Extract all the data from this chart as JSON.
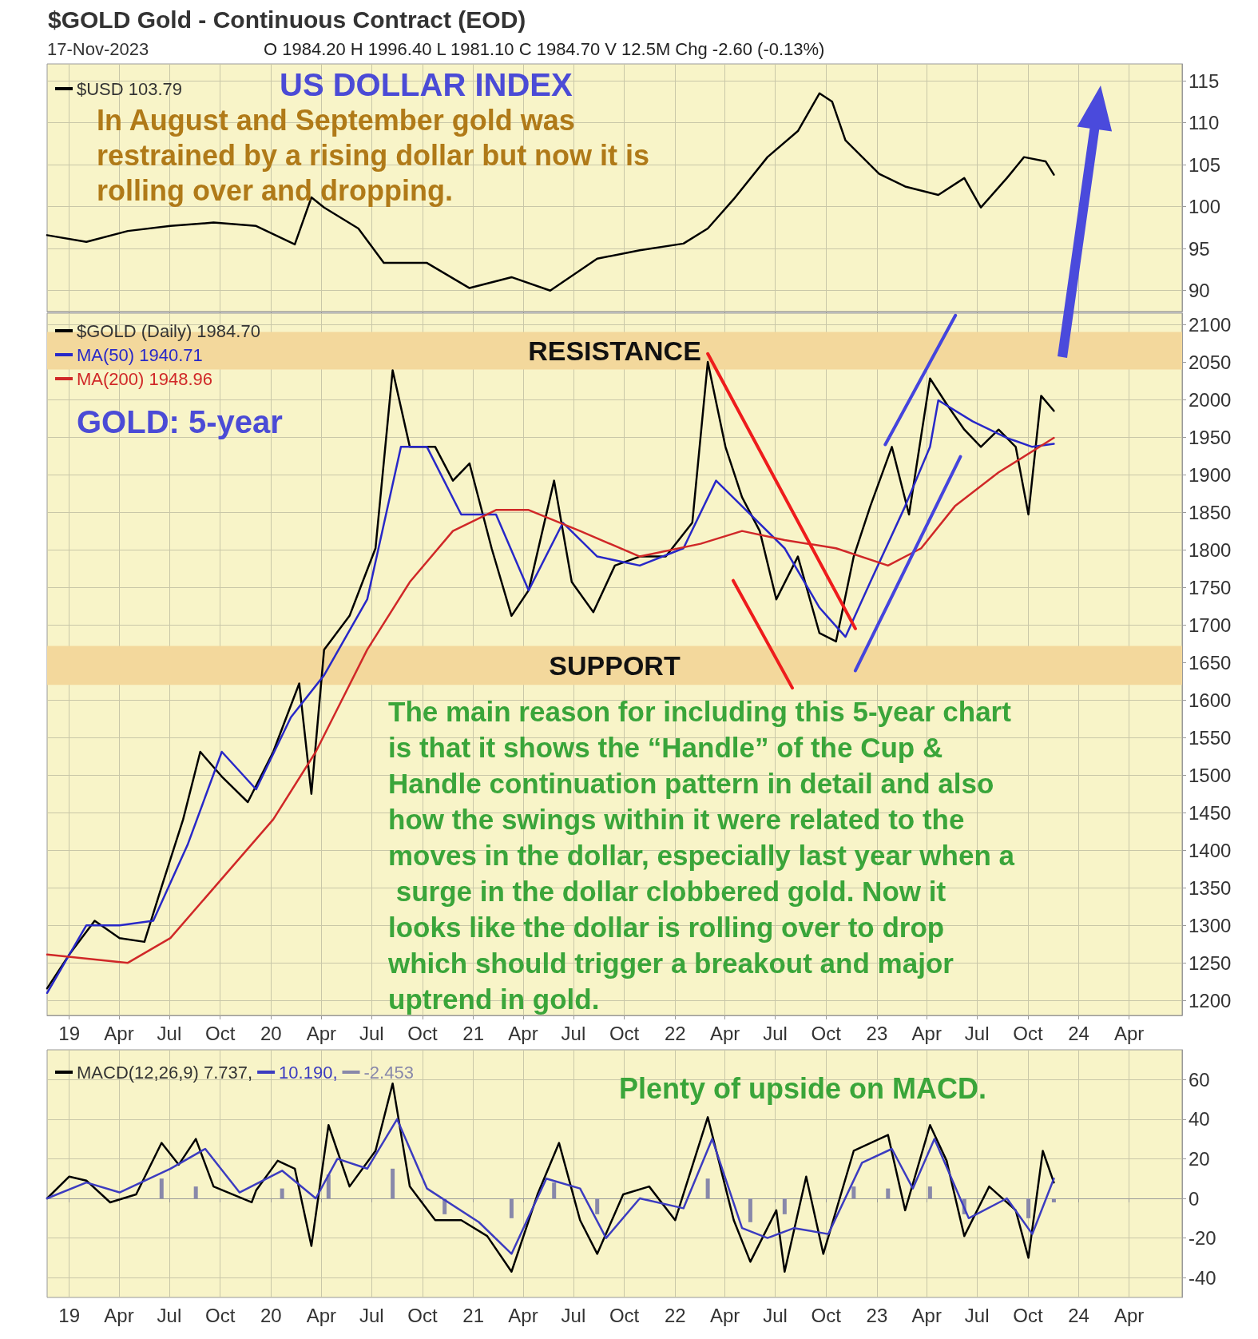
{
  "chart_data": [
    {
      "type": "line",
      "title": "$GOLD Gold - Continuous Contract (EOD)",
      "annotations": [
        "17-Nov-2023",
        "O 1984.20 H 1996.40 L 1981.10 C 1984.70 V 12.5M Chg -2.60 (-0.13%)",
        "US DOLLAR INDEX",
        "In August and September gold was restrained by a rising dollar but now it is rolling over and dropping."
      ],
      "series": [
        {
          "name": "$USD 103.79",
          "color": "#000000",
          "x": [
            "2018-11-22",
            "2019-02-01",
            "2019-04-17",
            "2019-07-03",
            "2019-09-19",
            "2019-12-05",
            "2020-02-13",
            "2020-03-14",
            "2020-04-06",
            "2020-06-07",
            "2020-07-23",
            "2020-10-09",
            "2020-12-25",
            "2021-03-11",
            "2021-05-20",
            "2021-08-13",
            "2021-10-29",
            "2022-01-16",
            "2022-03-01",
            "2022-04-17",
            "2022-06-17",
            "2022-08-11",
            "2022-09-19",
            "2022-10-12",
            "2022-11-05",
            "2023-01-05",
            "2023-02-21",
            "2023-04-22",
            "2023-06-08",
            "2023-07-08",
            "2023-08-24",
            "2023-09-24",
            "2023-11-02",
            "2023-11-17"
          ],
          "values": [
            96.6,
            95.8,
            97.1,
            97.7,
            98.1,
            97.7,
            95.5,
            101.1,
            99.9,
            97.4,
            93.3,
            93.3,
            90.3,
            91.6,
            90.0,
            93.8,
            94.8,
            95.6,
            97.4,
            100.9,
            105.9,
            109.0,
            113.5,
            112.5,
            107.9,
            103.9,
            102.4,
            101.4,
            103.4,
            99.9,
            103.4,
            105.9,
            105.4,
            103.8
          ]
        }
      ],
      "xlim": [
        "2018-11-22",
        "2024-07-06"
      ],
      "xticks": [
        {
          "value": "2019-01-01",
          "label": null
        },
        {
          "value": "2019-04-01",
          "label": null
        },
        {
          "value": "2019-07-01",
          "label": null
        },
        {
          "value": "2019-10-01",
          "label": null
        },
        {
          "value": "2020-01-01",
          "label": null
        },
        {
          "value": "2020-04-01",
          "label": null
        },
        {
          "value": "2020-07-01",
          "label": null
        },
        {
          "value": "2020-10-01",
          "label": null
        },
        {
          "value": "2021-01-01",
          "label": null
        },
        {
          "value": "2021-04-01",
          "label": null
        },
        {
          "value": "2021-07-01",
          "label": null
        },
        {
          "value": "2021-10-01",
          "label": null
        },
        {
          "value": "2022-01-01",
          "label": null
        },
        {
          "value": "2022-04-01",
          "label": null
        },
        {
          "value": "2022-07-01",
          "label": null
        },
        {
          "value": "2022-10-01",
          "label": null
        },
        {
          "value": "2023-01-01",
          "label": null
        },
        {
          "value": "2023-04-01",
          "label": null
        },
        {
          "value": "2023-07-01",
          "label": null
        },
        {
          "value": "2023-10-01",
          "label": null
        },
        {
          "value": "2024-01-01",
          "label": null
        },
        {
          "value": "2024-04-01",
          "label": null
        }
      ],
      "ylim": [
        87.5,
        117
      ],
      "yticks": [
        90,
        95,
        100,
        105,
        110,
        115
      ],
      "tick_labels": "y",
      "grid": true,
      "legend": "top left",
      "marker": "none",
      "line_style": "solid"
    },
    {
      "type": "line",
      "annotations": [
        "GOLD: 5-year",
        "The main reason for including this 5-year chart is that it shows the “Handle” of the Cup & Handle continuation pattern in detail and also how the swings within it were related to the moves in the dollar, especially last year when a surge in the dollar clobbered gold. Now it looks like the dollar is rolling over to drop which should trigger a breakout and major uptrend in gold."
      ],
      "series": [
        {
          "name": "$GOLD (Daily) 1984.70",
          "color": "#000000",
          "x": [
            "2018-11-22",
            "2019-01-01",
            "2019-02-16",
            "2019-04-02",
            "2019-05-17",
            "2019-06-17",
            "2019-07-26",
            "2019-08-26",
            "2019-10-04",
            "2019-11-20",
            "2020-01-05",
            "2020-02-21",
            "2020-03-14",
            "2020-04-06",
            "2020-05-22",
            "2020-07-08",
            "2020-08-08",
            "2020-09-08",
            "2020-10-24",
            "2020-11-25",
            "2020-12-25",
            "2021-02-03",
            "2021-03-11",
            "2021-04-11",
            "2021-05-27",
            "2021-06-28",
            "2021-08-06",
            "2021-09-14",
            "2021-10-29",
            "2021-12-15",
            "2022-02-01",
            "2022-03-01",
            "2022-04-02",
            "2022-05-02",
            "2022-06-03",
            "2022-07-03",
            "2022-08-11",
            "2022-09-19",
            "2022-10-19",
            "2022-11-20",
            "2022-12-20",
            "2023-01-28",
            "2023-02-28",
            "2023-04-07",
            "2023-05-07",
            "2023-06-08",
            "2023-07-08",
            "2023-08-09",
            "2023-09-09",
            "2023-10-02",
            "2023-10-25",
            "2023-11-17"
          ],
          "values": [
            1216,
            1261,
            1306,
            1283,
            1278,
            1351,
            1441,
            1531,
            1498,
            1464,
            1531,
            1622,
            1475,
            1667,
            1712,
            1802,
            2039,
            1937,
            1937,
            1892,
            1915,
            1802,
            1712,
            1746,
            1892,
            1757,
            1717,
            1779,
            1791,
            1791,
            1836,
            2050,
            1937,
            1870,
            1825,
            1734,
            1791,
            1689,
            1678,
            1791,
            1858,
            1937,
            1847,
            2028,
            1994,
            1960,
            1937,
            1960,
            1937,
            1847,
            2005,
            1985
          ]
        },
        {
          "name": "MA(50) 1940.71",
          "color": "#2828c8",
          "x": [
            "2018-11-22",
            "2019-02-01",
            "2019-04-02",
            "2019-06-02",
            "2019-08-03",
            "2019-10-04",
            "2019-12-05",
            "2020-02-06",
            "2020-04-06",
            "2020-06-23",
            "2020-08-23",
            "2020-10-09",
            "2020-12-10",
            "2021-02-11",
            "2021-04-11",
            "2021-06-12",
            "2021-08-13",
            "2021-10-29",
            "2022-01-16",
            "2022-03-16",
            "2022-05-17",
            "2022-07-18",
            "2022-09-19",
            "2022-11-05",
            "2022-12-20",
            "2023-02-21",
            "2023-04-07",
            "2023-04-22",
            "2023-06-23",
            "2023-08-24",
            "2023-10-09",
            "2023-11-17"
          ],
          "values": [
            1210,
            1300,
            1300,
            1306,
            1407,
            1531,
            1481,
            1577,
            1633,
            1734,
            1937,
            1937,
            1847,
            1847,
            1746,
            1836,
            1791,
            1779,
            1802,
            1892,
            1847,
            1802,
            1723,
            1684,
            1757,
            1858,
            1937,
            1999,
            1971,
            1949,
            1937,
            1941
          ]
        },
        {
          "name": "MA(200) 1948.96",
          "color": "#d02828",
          "x": [
            "2018-11-22",
            "2019-04-17",
            "2019-07-03",
            "2019-10-04",
            "2020-01-05",
            "2020-03-22",
            "2020-06-23",
            "2020-09-08",
            "2020-11-25",
            "2021-02-11",
            "2021-04-11",
            "2021-07-13",
            "2021-10-29",
            "2022-02-16",
            "2022-05-02",
            "2022-07-18",
            "2022-10-19",
            "2023-01-21",
            "2023-03-22",
            "2023-05-22",
            "2023-08-09",
            "2023-11-17"
          ],
          "values": [
            1261,
            1250,
            1283,
            1362,
            1441,
            1531,
            1667,
            1757,
            1825,
            1853,
            1853,
            1825,
            1791,
            1808,
            1825,
            1813,
            1802,
            1779,
            1802,
            1858,
            1903,
            1949
          ]
        },
        {
          "color": "#ee1c1c",
          "x": [
            "2022-03-01",
            "2022-11-23"
          ],
          "values": [
            2061,
            1695
          ]
        },
        {
          "color": "#ee1c1c",
          "x": [
            "2022-04-16",
            "2022-08-01"
          ],
          "values": [
            1759,
            1616
          ]
        },
        {
          "color": "#4444dd",
          "x": [
            "2023-01-16",
            "2023-05-23"
          ],
          "values": [
            1940,
            2112
          ]
        },
        {
          "color": "#4444dd",
          "x": [
            "2022-11-23",
            "2023-06-01"
          ],
          "values": [
            1639,
            1924
          ]
        }
      ],
      "bands": [
        {
          "axis": "y",
          "from": 2040,
          "to": 2090,
          "label": "RESISTANCE",
          "color": "#f3d89c"
        },
        {
          "axis": "y",
          "from": 1620,
          "to": 1672,
          "label": "SUPPORT",
          "color": "#f3d89c"
        }
      ],
      "xlim": [
        "2018-11-22",
        "2024-07-06"
      ],
      "xticks": [
        {
          "value": "2019-01-01",
          "label": "19"
        },
        {
          "value": "2019-04-01",
          "label": "Apr"
        },
        {
          "value": "2019-07-01",
          "label": "Jul"
        },
        {
          "value": "2019-10-01",
          "label": "Oct"
        },
        {
          "value": "2020-01-01",
          "label": "20"
        },
        {
          "value": "2020-04-01",
          "label": "Apr"
        },
        {
          "value": "2020-07-01",
          "label": "Jul"
        },
        {
          "value": "2020-10-01",
          "label": "Oct"
        },
        {
          "value": "2021-01-01",
          "label": "21"
        },
        {
          "value": "2021-04-01",
          "label": "Apr"
        },
        {
          "value": "2021-07-01",
          "label": "Jul"
        },
        {
          "value": "2021-10-01",
          "label": "Oct"
        },
        {
          "value": "2022-01-01",
          "label": "22"
        },
        {
          "value": "2022-04-01",
          "label": "Apr"
        },
        {
          "value": "2022-07-01",
          "label": "Jul"
        },
        {
          "value": "2022-10-01",
          "label": "Oct"
        },
        {
          "value": "2023-01-01",
          "label": "23"
        },
        {
          "value": "2023-04-01",
          "label": "Apr"
        },
        {
          "value": "2023-07-01",
          "label": "Jul"
        },
        {
          "value": "2023-10-01",
          "label": "Oct"
        },
        {
          "value": "2024-01-01",
          "label": "24"
        },
        {
          "value": "2024-04-01",
          "label": "Apr"
        }
      ],
      "ylim": [
        1180,
        2115
      ],
      "yticks": [
        1200,
        1250,
        1300,
        1350,
        1400,
        1450,
        1500,
        1550,
        1600,
        1650,
        1700,
        1750,
        1800,
        1850,
        1900,
        1950,
        2000,
        2050,
        2100
      ],
      "grid": true,
      "legend": "top left",
      "marker": "none",
      "line_style": "solid"
    },
    {
      "type": "line",
      "annotations": [
        "Plenty of upside on MACD."
      ],
      "series": [
        {
          "name": "MACD(12,26,9) 7.737,",
          "color": "#000000",
          "x": [
            "2018-11-22",
            "2019-01-01",
            "2019-02-01",
            "2019-03-16",
            "2019-05-02",
            "2019-06-17",
            "2019-07-18",
            "2019-08-18",
            "2019-09-19",
            "2019-11-27",
            "2019-12-05",
            "2020-01-13",
            "2020-02-13",
            "2020-03-14",
            "2020-04-14",
            "2020-05-22",
            "2020-07-08",
            "2020-08-08",
            "2020-09-08",
            "2020-10-24",
            "2020-12-10",
            "2021-01-26",
            "2021-03-11",
            "2021-04-27",
            "2021-06-05",
            "2021-07-13",
            "2021-08-13",
            "2021-09-29",
            "2021-11-15",
            "2022-01-01",
            "2022-03-01",
            "2022-04-17",
            "2022-05-17",
            "2022-07-03",
            "2022-07-18",
            "2022-08-26",
            "2022-09-26",
            "2022-11-20",
            "2023-01-21",
            "2023-02-21",
            "2023-04-07",
            "2023-05-07",
            "2023-06-08",
            "2023-07-23",
            "2023-09-09",
            "2023-10-02",
            "2023-10-28",
            "2023-11-17"
          ],
          "values": [
            0,
            11,
            9,
            -2,
            2,
            28,
            17,
            30,
            6,
            -2,
            4,
            19,
            15,
            -24,
            37,
            6,
            24,
            58,
            6,
            -11,
            -11,
            -19,
            -37,
            2,
            28,
            -11,
            -28,
            2,
            6,
            -11,
            41,
            -11,
            -32,
            -6,
            -37,
            11,
            -28,
            24,
            32,
            -6,
            37,
            19,
            -19,
            6,
            -6,
            -30,
            24,
            8
          ]
        },
        {
          "name": "10.190,",
          "color": "#3c3cc0",
          "x": [
            "2018-11-22",
            "2019-02-01",
            "2019-04-02",
            "2019-07-03",
            "2019-09-04",
            "2019-11-05",
            "2020-01-21",
            "2020-03-22",
            "2020-04-30",
            "2020-06-23",
            "2020-08-16",
            "2020-10-09",
            "2021-01-11",
            "2021-03-11",
            "2021-05-13",
            "2021-07-13",
            "2021-08-29",
            "2021-10-29",
            "2022-01-16",
            "2022-03-09",
            "2022-05-02",
            "2022-06-17",
            "2022-08-04",
            "2022-10-05",
            "2022-12-05",
            "2023-01-28",
            "2023-03-07",
            "2023-04-15",
            "2023-06-16",
            "2023-08-24",
            "2023-10-09",
            "2023-11-17"
          ],
          "values": [
            0,
            8,
            3,
            15,
            25,
            3,
            14,
            0,
            20,
            15,
            40,
            5,
            -12,
            -28,
            10,
            5,
            -20,
            0,
            -5,
            30,
            -15,
            -20,
            -15,
            -18,
            18,
            25,
            5,
            30,
            -10,
            0,
            -18,
            10
          ]
        },
        {
          "name": "-2.453",
          "type": "bar",
          "color": "#8888aa",
          "x": [
            "2019-06-17",
            "2019-08-18",
            "2020-01-21",
            "2020-04-14",
            "2020-08-08",
            "2020-11-10",
            "2021-03-11",
            "2021-05-27",
            "2021-08-13",
            "2022-03-01",
            "2022-05-17",
            "2022-07-18",
            "2022-11-20",
            "2023-01-21",
            "2023-04-07",
            "2023-06-08",
            "2023-10-02",
            "2023-11-17"
          ],
          "values": [
            10,
            6,
            5,
            12,
            15,
            -8,
            -10,
            8,
            -8,
            10,
            -12,
            -8,
            6,
            5,
            6,
            -8,
            -10,
            -2
          ]
        }
      ],
      "xlim": [
        "2018-11-22",
        "2024-07-06"
      ],
      "xticks": [
        {
          "value": "2019-01-01",
          "label": "19"
        },
        {
          "value": "2019-04-01",
          "label": "Apr"
        },
        {
          "value": "2019-07-01",
          "label": "Jul"
        },
        {
          "value": "2019-10-01",
          "label": "Oct"
        },
        {
          "value": "2020-01-01",
          "label": "20"
        },
        {
          "value": "2020-04-01",
          "label": "Apr"
        },
        {
          "value": "2020-07-01",
          "label": "Jul"
        },
        {
          "value": "2020-10-01",
          "label": "Oct"
        },
        {
          "value": "2021-01-01",
          "label": "21"
        },
        {
          "value": "2021-04-01",
          "label": "Apr"
        },
        {
          "value": "2021-07-01",
          "label": "Jul"
        },
        {
          "value": "2021-10-01",
          "label": "Oct"
        },
        {
          "value": "2022-01-01",
          "label": "22"
        },
        {
          "value": "2022-04-01",
          "label": "Apr"
        },
        {
          "value": "2022-07-01",
          "label": "Jul"
        },
        {
          "value": "2022-10-01",
          "label": "Oct"
        },
        {
          "value": "2023-01-01",
          "label": "23"
        },
        {
          "value": "2023-04-01",
          "label": "Apr"
        },
        {
          "value": "2023-07-01",
          "label": "Jul"
        },
        {
          "value": "2023-10-01",
          "label": "Oct"
        },
        {
          "value": "2024-01-01",
          "label": "24"
        },
        {
          "value": "2024-04-01",
          "label": "Apr"
        }
      ],
      "ylim": [
        -50,
        75
      ],
      "yticks": [
        -40,
        -20,
        0,
        20,
        40,
        60
      ],
      "grid": true,
      "legend": "top left",
      "marker": "none",
      "line_style": "solid"
    }
  ]
}
